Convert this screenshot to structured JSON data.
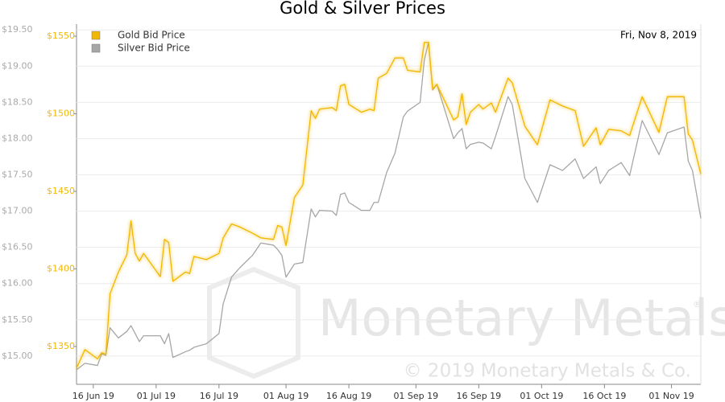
{
  "chart_data": {
    "type": "line",
    "title": "Gold & Silver Prices",
    "date_label": "Fri, Nov 8, 2019",
    "annotations": [
      "Monetary Metals",
      "®",
      "© 2019 Monetary Metals & Co."
    ],
    "x": [
      "2019-06-12",
      "2019-06-14",
      "2019-06-17",
      "2019-06-18",
      "2019-06-19",
      "2019-06-20",
      "2019-06-22",
      "2019-06-24",
      "2019-06-25",
      "2019-06-26",
      "2019-06-27",
      "2019-06-28",
      "2019-07-02",
      "2019-07-03",
      "2019-07-04",
      "2019-07-05",
      "2019-07-08",
      "2019-07-09",
      "2019-07-10",
      "2019-07-13",
      "2019-07-16",
      "2019-07-17",
      "2019-07-19",
      "2019-07-21",
      "2019-07-24",
      "2019-07-26",
      "2019-07-29",
      "2019-07-30",
      "2019-07-31",
      "2019-08-01",
      "2019-08-03",
      "2019-08-05",
      "2019-08-07",
      "2019-08-08",
      "2019-08-09",
      "2019-08-12",
      "2019-08-13",
      "2019-08-14",
      "2019-08-15",
      "2019-08-16",
      "2019-08-19",
      "2019-08-21",
      "2019-08-22",
      "2019-08-23",
      "2019-08-25",
      "2019-08-27",
      "2019-08-29",
      "2019-08-30",
      "2019-09-02",
      "2019-09-03",
      "2019-09-04",
      "2019-09-05",
      "2019-09-06",
      "2019-09-10",
      "2019-09-11",
      "2019-09-12",
      "2019-09-13",
      "2019-09-14",
      "2019-09-16",
      "2019-09-17",
      "2019-09-19",
      "2019-09-20",
      "2019-09-23",
      "2019-09-24",
      "2019-09-27",
      "2019-09-30",
      "2019-10-03",
      "2019-10-06",
      "2019-10-09",
      "2019-10-11",
      "2019-10-14",
      "2019-10-15",
      "2019-10-17",
      "2019-10-20",
      "2019-10-22",
      "2019-10-25",
      "2019-10-29",
      "2019-10-31",
      "2019-11-04",
      "2019-11-05",
      "2019-11-06",
      "2019-11-08"
    ],
    "series": [
      {
        "name": "Gold Bid Price",
        "color": "#f2b705",
        "axis": "y2",
        "values": [
          1336,
          1348,
          1342,
          1346,
          1345,
          1384,
          1398,
          1409,
          1431,
          1410,
          1405,
          1410,
          1395,
          1419,
          1417,
          1392,
          1398,
          1397,
          1408,
          1406,
          1410,
          1420,
          1429,
          1427,
          1423,
          1420,
          1419,
          1428,
          1427,
          1415,
          1446,
          1454,
          1502,
          1497,
          1503,
          1504,
          1502,
          1518,
          1519,
          1506,
          1501,
          1503,
          1502,
          1523,
          1526,
          1536,
          1536,
          1528,
          1527,
          1546,
          1546,
          1516,
          1519,
          1496,
          1498,
          1513,
          1493,
          1501,
          1506,
          1503,
          1507,
          1501,
          1523,
          1520,
          1492,
          1480,
          1509,
          1505,
          1502,
          1479,
          1491,
          1480,
          1490,
          1489,
          1486,
          1511,
          1488,
          1511,
          1511,
          1487,
          1483,
          1461
        ]
      },
      {
        "name": "Silver Bid Price",
        "color": "#a6a6a6",
        "values": [
          14.81,
          14.9,
          14.87,
          15.03,
          15.01,
          15.39,
          15.25,
          15.34,
          15.42,
          15.31,
          15.2,
          15.28,
          15.28,
          15.17,
          15.31,
          14.98,
          15.06,
          15.08,
          15.12,
          15.17,
          15.31,
          15.72,
          16.09,
          16.22,
          16.39,
          16.56,
          16.53,
          16.47,
          16.39,
          16.09,
          16.27,
          16.29,
          17.03,
          16.92,
          17.01,
          17.0,
          16.94,
          17.23,
          17.25,
          17.12,
          17.01,
          17.01,
          17.12,
          17.12,
          17.53,
          17.8,
          18.3,
          18.38,
          18.5,
          19.08,
          19.33,
          18.67,
          18.75,
          18.0,
          18.08,
          18.14,
          17.86,
          17.92,
          17.95,
          17.94,
          17.86,
          18.03,
          18.58,
          18.47,
          17.45,
          17.12,
          17.64,
          17.56,
          17.72,
          17.45,
          17.61,
          17.38,
          17.56,
          17.67,
          17.49,
          18.25,
          17.78,
          18.08,
          18.16,
          17.69,
          17.56,
          16.9
        ]
      }
    ],
    "xlim": [
      "2019-06-12",
      "2019-11-08"
    ],
    "xticks": [
      {
        "value": "2019-06-16",
        "label": "16 Jun 19"
      },
      {
        "value": "2019-07-01",
        "label": "01 Jul 19"
      },
      {
        "value": "2019-07-16",
        "label": "16 Jul 19"
      },
      {
        "value": "2019-08-01",
        "label": "01 Aug 19"
      },
      {
        "value": "2019-08-16",
        "label": "16 Aug 19"
      },
      {
        "value": "2019-09-01",
        "label": "01 Sep 19"
      },
      {
        "value": "2019-09-16",
        "label": "16 Sep 19"
      },
      {
        "value": "2019-10-01",
        "label": "01 Oct 19"
      },
      {
        "value": "2019-10-16",
        "label": "16 Oct 19"
      },
      {
        "value": "2019-11-01",
        "label": "01 Nov 19"
      }
    ],
    "ylim": [
      14.61,
      19.58
    ],
    "yticks": [
      {
        "value": 15,
        "label": "$15.00"
      },
      {
        "value": 15.5,
        "label": "$15.50"
      },
      {
        "value": 16,
        "label": "$16.00"
      },
      {
        "value": 16.5,
        "label": "$16.50"
      },
      {
        "value": 17,
        "label": "$17.00"
      },
      {
        "value": 17.5,
        "label": "$17.50"
      },
      {
        "value": 18,
        "label": "$18.00"
      },
      {
        "value": 18.5,
        "label": "$18.50"
      },
      {
        "value": 19,
        "label": "$19.00"
      },
      {
        "value": 19.5,
        "label": "$19.50"
      }
    ],
    "y2lim": [
      1325.6,
      1557.8
    ],
    "y2ticks": [
      {
        "value": 1350,
        "label": "$1350"
      },
      {
        "value": 1400,
        "label": "$1400"
      },
      {
        "value": 1450,
        "label": "$1450"
      },
      {
        "value": 1500,
        "label": "$1500"
      },
      {
        "value": 1550,
        "label": "$1550"
      }
    ],
    "grid": true,
    "legend": "top-left"
  }
}
